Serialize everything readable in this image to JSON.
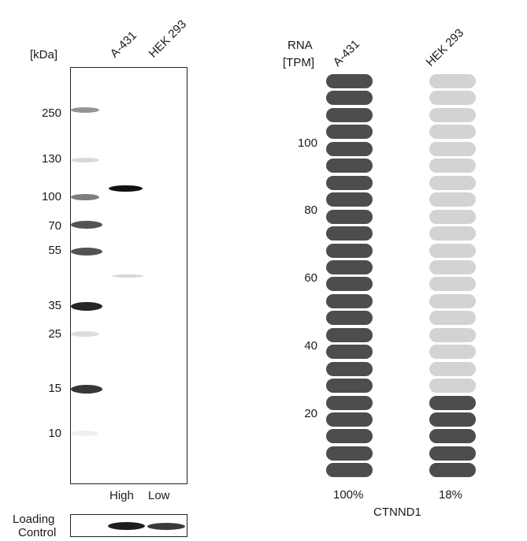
{
  "blot": {
    "unit_label": "[kDa]",
    "lanes": [
      "A-431",
      "HEK 293"
    ],
    "markers": [
      "250",
      "130",
      "100",
      "70",
      "55",
      "35",
      "25",
      "15",
      "10"
    ],
    "lane_levels": [
      "High",
      "Low"
    ],
    "loading_control_label_line1": "Loading",
    "loading_control_label_line2": "Control"
  },
  "rna": {
    "title_line1": "RNA",
    "title_line2": "[TPM]",
    "samples": [
      "A-431",
      "HEK 293"
    ],
    "y_ticks": [
      "100",
      "80",
      "60",
      "40",
      "20"
    ],
    "percent_labels": [
      "100%",
      "18%"
    ],
    "gene": "CTNND1",
    "colors": {
      "filled": "#4d4d4d",
      "empty": "#d3d3d3"
    }
  },
  "chart_data": {
    "type": "bar",
    "title": "",
    "ylabel": "RNA [TPM]",
    "categories": [
      "A-431",
      "HEK 293"
    ],
    "values_percent": [
      100,
      18
    ],
    "segments_total": 24,
    "segments_filled": [
      24,
      5
    ],
    "y_ticks": [
      20,
      40,
      60,
      80,
      100
    ],
    "gene": "CTNND1"
  }
}
